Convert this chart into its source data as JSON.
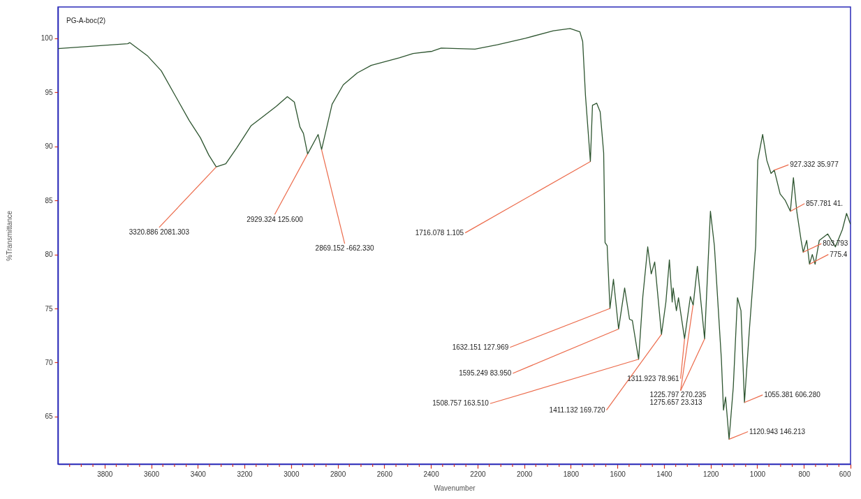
{
  "chart_data": {
    "type": "line",
    "title": "PG-A-boc(2)",
    "xlabel": "Wavenumber",
    "ylabel": "%Transmittance",
    "xlim": [
      4000,
      600
    ],
    "ylim": [
      60.6,
      102.9
    ],
    "xticks": [
      {
        "value": 3950,
        "label": null
      },
      {
        "value": 3900,
        "label": null
      },
      {
        "value": 3850,
        "label": null
      },
      3800,
      {
        "value": 3750,
        "label": null
      },
      {
        "value": 3700,
        "label": null
      },
      {
        "value": 3650,
        "label": null
      },
      3600,
      {
        "value": 3550,
        "label": null
      },
      {
        "value": 3500,
        "label": null
      },
      {
        "value": 3450,
        "label": null
      },
      3400,
      {
        "value": 3350,
        "label": null
      },
      {
        "value": 3300,
        "label": null
      },
      {
        "value": 3250,
        "label": null
      },
      3200,
      {
        "value": 3150,
        "label": null
      },
      {
        "value": 3100,
        "label": null
      },
      {
        "value": 3050,
        "label": null
      },
      3000,
      {
        "value": 2950,
        "label": null
      },
      {
        "value": 2900,
        "label": null
      },
      {
        "value": 2850,
        "label": null
      },
      2800,
      {
        "value": 2750,
        "label": null
      },
      {
        "value": 2700,
        "label": null
      },
      {
        "value": 2650,
        "label": null
      },
      2600,
      {
        "value": 2550,
        "label": null
      },
      {
        "value": 2500,
        "label": null
      },
      {
        "value": 2450,
        "label": null
      },
      2400,
      {
        "value": 2350,
        "label": null
      },
      {
        "value": 2300,
        "label": null
      },
      {
        "value": 2250,
        "label": null
      },
      2200,
      {
        "value": 2150,
        "label": null
      },
      {
        "value": 2100,
        "label": null
      },
      {
        "value": 2050,
        "label": null
      },
      2000,
      {
        "value": 1950,
        "label": null
      },
      {
        "value": 1900,
        "label": null
      },
      {
        "value": 1850,
        "label": null
      },
      1800,
      {
        "value": 1750,
        "label": null
      },
      {
        "value": 1700,
        "label": null
      },
      {
        "value": 1650,
        "label": null
      },
      1600,
      {
        "value": 1550,
        "label": null
      },
      {
        "value": 1500,
        "label": null
      },
      {
        "value": 1450,
        "label": null
      },
      1400,
      {
        "value": 1350,
        "label": null
      },
      {
        "value": 1300,
        "label": null
      },
      {
        "value": 1250,
        "label": null
      },
      1200,
      {
        "value": 1150,
        "label": null
      },
      {
        "value": 1100,
        "label": null
      },
      {
        "value": 1050,
        "label": null
      },
      1000,
      {
        "value": 950,
        "label": null
      },
      {
        "value": 900,
        "label": null
      },
      {
        "value": 850,
        "label": null
      },
      800,
      {
        "value": 750,
        "label": null
      },
      {
        "value": 700,
        "label": null
      },
      {
        "value": 650,
        "label": null
      },
      600
    ],
    "yticks": [
      65,
      70,
      75,
      80,
      85,
      90,
      95,
      100
    ],
    "x": [
      4000,
      3701,
      3692,
      3617,
      3557,
      3497,
      3437,
      3389,
      3353,
      3321,
      3280,
      3232,
      3172,
      3124,
      3064,
      3016,
      2986,
      2962,
      2947,
      2929,
      2884,
      2869,
      2824,
      2776,
      2716,
      2656,
      2536,
      2476,
      2395,
      2356,
      2211,
      2115,
      1995,
      1875,
      1803,
      1761,
      1749,
      1737,
      1716,
      1707,
      1689,
      1674,
      1659,
      1653,
      1644,
      1632,
      1617,
      1595,
      1569,
      1548,
      1536,
      1509,
      1491,
      1470,
      1455,
      1440,
      1411,
      1392,
      1377,
      1365,
      1361,
      1347,
      1338,
      1312,
      1287,
      1275,
      1257,
      1226,
      1201,
      1184,
      1154,
      1145,
      1136,
      1121,
      1103,
      1085,
      1070,
      1055,
      1034,
      1007,
      998,
      977,
      959,
      941,
      927,
      902,
      880,
      858,
      845,
      830,
      812,
      803,
      788,
      776,
      764,
      752,
      734,
      698,
      665,
      635,
      617,
      602,
      600
    ],
    "series": [
      {
        "color": "#2e5530",
        "values": [
          99.05,
          99.5,
          99.6,
          98.4,
          97.0,
          94.7,
          92.4,
          90.8,
          89.2,
          88.1,
          88.4,
          89.9,
          91.9,
          92.7,
          93.7,
          94.6,
          94.1,
          91.8,
          91.2,
          89.3,
          91.1,
          89.7,
          93.9,
          95.7,
          96.8,
          97.5,
          98.2,
          98.6,
          98.8,
          99.1,
          99.0,
          99.4,
          100.0,
          100.7,
          100.9,
          100.6,
          99.7,
          94.7,
          88.6,
          93.8,
          94.0,
          93.2,
          89.4,
          81.1,
          80.8,
          75.0,
          77.7,
          73.1,
          76.9,
          74.0,
          73.9,
          70.3,
          76.1,
          80.7,
          78.2,
          79.3,
          72.6,
          75.6,
          79.5,
          75.6,
          76.9,
          74.8,
          76.0,
          72.2,
          76.1,
          75.3,
          78.9,
          72.2,
          84.0,
          80.8,
          70.3,
          65.6,
          66.8,
          62.9,
          67.7,
          76.0,
          74.8,
          66.3,
          73.0,
          80.8,
          88.7,
          91.1,
          88.7,
          87.5,
          87.8,
          85.6,
          85.0,
          84.0,
          87.1,
          83.9,
          81.3,
          80.2,
          81.3,
          79.1,
          80.0,
          79.1,
          81.3,
          81.9,
          80.7,
          82.3,
          83.8,
          82.9,
          82.8
        ]
      }
    ],
    "annotations": [
      {
        "text": "3320.886  2081.303",
        "x": 3320.886,
        "y": 88.1
      },
      {
        "text": "2929.324  125.600",
        "x": 2929.324,
        "y": 89.3
      },
      {
        "text": "2869.152  -662.330",
        "x": 2869.152,
        "y": 89.7
      },
      {
        "text": "1716.078  1.105",
        "x": 1716.078,
        "y": 88.6
      },
      {
        "text": "1632.151  127.969",
        "x": 1632.151,
        "y": 75.0
      },
      {
        "text": "1595.249  83.950",
        "x": 1595.249,
        "y": 73.1
      },
      {
        "text": "1508.757  163.510",
        "x": 1508.757,
        "y": 70.3
      },
      {
        "text": "1411.132  169.720",
        "x": 1411.132,
        "y": 72.6
      },
      {
        "text": "1311.923  78.961",
        "x": 1311.923,
        "y": 72.2
      },
      {
        "text": "1225.797  270.235",
        "x": 1225.797,
        "y": 72.2
      },
      {
        "text": "1275.657  23.313",
        "x": 1275.657,
        "y": 75.3
      },
      {
        "text": "1120.943  146.213",
        "x": 1120.943,
        "y": 62.9
      },
      {
        "text": "1055.381  606.280",
        "x": 1055.381,
        "y": 66.3
      },
      {
        "text": "927.332  35.977",
        "x": 927.332,
        "y": 87.8
      },
      {
        "text": "857.781  41.",
        "x": 857.781,
        "y": 84.0
      },
      {
        "text": "803.793",
        "x": 803.793,
        "y": 80.2
      },
      {
        "text": "775.4",
        "x": 775.4,
        "y": 79.1
      }
    ]
  }
}
